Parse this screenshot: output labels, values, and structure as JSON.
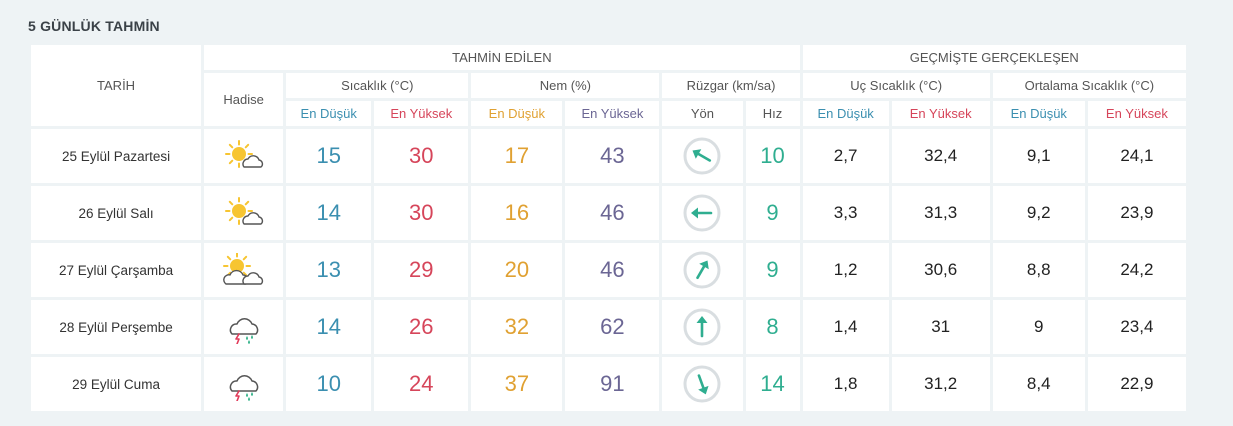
{
  "title": "5 GÜNLÜK TAHMİN",
  "headers": {
    "date": "TARİH",
    "event": "Hadise",
    "forecast_group": "TAHMİN EDİLEN",
    "history_group": "GEÇMİŞTE GERÇEKLEŞEN",
    "temperature": "Sıcaklık (°C)",
    "humidity": "Nem (%)",
    "wind": "Rüzgar (km/sa)",
    "extreme_temp": "Uç Sıcaklık (°C)",
    "avg_temp": "Ortalama Sıcaklık (°C)",
    "low": "En Düşük",
    "high": "En Yüksek",
    "direction": "Yön",
    "speed": "Hız"
  },
  "colors": {
    "temp_low": "#3b8fb0",
    "temp_high": "#d6455a",
    "hum_low": "#e0a132",
    "hum_high": "#6b6694",
    "wind_speed": "#2fae90",
    "wind_arrow": "#2fae90"
  },
  "rows": [
    {
      "date": "25 Eylül Pazartesi",
      "icon": "partly-cloudy-icon",
      "temp_low": "15",
      "temp_high": "30",
      "hum_low": "17",
      "hum_high": "43",
      "wind_dir_deg": 300,
      "wind_speed": "10",
      "uc_low": "2,7",
      "uc_high": "32,4",
      "avg_low": "9,1",
      "avg_high": "24,1"
    },
    {
      "date": "26 Eylül Salı",
      "icon": "partly-cloudy-icon",
      "temp_low": "14",
      "temp_high": "30",
      "hum_low": "16",
      "hum_high": "46",
      "wind_dir_deg": 270,
      "wind_speed": "9",
      "uc_low": "3,3",
      "uc_high": "31,3",
      "avg_low": "9,2",
      "avg_high": "23,9"
    },
    {
      "date": "27 Eylül Çarşamba",
      "icon": "mostly-cloudy-icon",
      "temp_low": "13",
      "temp_high": "29",
      "hum_low": "20",
      "hum_high": "46",
      "wind_dir_deg": 30,
      "wind_speed": "9",
      "uc_low": "1,2",
      "uc_high": "30,6",
      "avg_low": "8,8",
      "avg_high": "24,2"
    },
    {
      "date": "28 Eylül Perşembe",
      "icon": "thunderstorm-icon",
      "temp_low": "14",
      "temp_high": "26",
      "hum_low": "32",
      "hum_high": "62",
      "wind_dir_deg": 0,
      "wind_speed": "8",
      "uc_low": "1,4",
      "uc_high": "31",
      "avg_low": "9",
      "avg_high": "23,4"
    },
    {
      "date": "29 Eylül Cuma",
      "icon": "thunderstorm-icon",
      "temp_low": "10",
      "temp_high": "24",
      "hum_low": "37",
      "hum_high": "91",
      "wind_dir_deg": 160,
      "wind_speed": "14",
      "uc_low": "1,8",
      "uc_high": "31,2",
      "avg_low": "8,4",
      "avg_high": "22,9"
    }
  ]
}
